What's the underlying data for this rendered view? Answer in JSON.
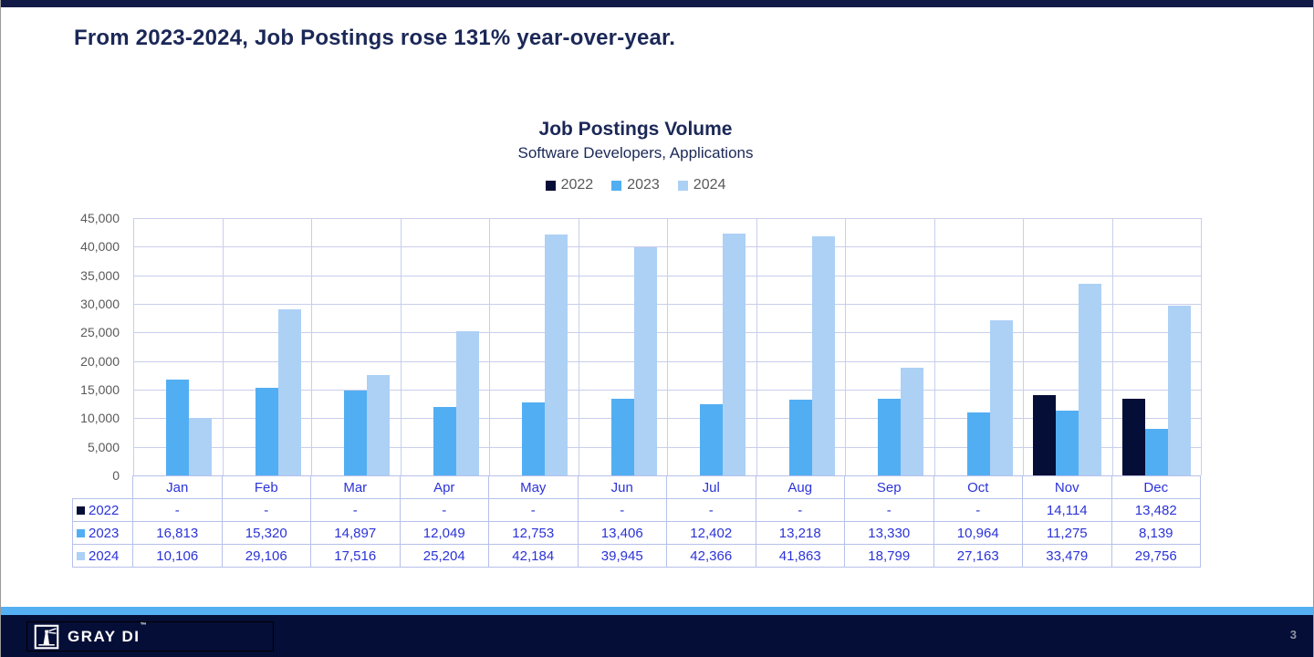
{
  "page": {
    "headline": "From 2023-2024, Job Postings rose 131% year-over-year.",
    "page_number": "3",
    "brand": "GRAY DI",
    "brand_tm": "™"
  },
  "colors": {
    "top_bar": "#121b47",
    "headline_text": "#1b2857",
    "footer_navy": "#050e36",
    "footer_stripe": "#54b0f3",
    "gridline": "#c9ceec",
    "table_border": "#b7c1ea",
    "table_text": "#2b33d8",
    "axis_text": "#5a5a5a",
    "legend_text": "#595959"
  },
  "chart_data": {
    "type": "bar",
    "title": "Job Postings Volume",
    "subtitle": "Software Developers, Applications",
    "categories": [
      "Jan",
      "Feb",
      "Mar",
      "Apr",
      "May",
      "Jun",
      "Jul",
      "Aug",
      "Sep",
      "Oct",
      "Nov",
      "Dec"
    ],
    "series": [
      {
        "name": "2022",
        "color": "#050e36",
        "values": [
          null,
          null,
          null,
          null,
          null,
          null,
          null,
          null,
          null,
          null,
          14114,
          13482
        ]
      },
      {
        "name": "2023",
        "color": "#52aef3",
        "values": [
          16813,
          15320,
          14897,
          12049,
          12753,
          13406,
          12402,
          13218,
          13330,
          10964,
          11275,
          8139
        ]
      },
      {
        "name": "2024",
        "color": "#add0f5",
        "values": [
          10106,
          29106,
          17516,
          25204,
          42184,
          39945,
          42366,
          41863,
          18799,
          27163,
          33479,
          29756
        ]
      }
    ],
    "ylim": [
      0,
      45000
    ],
    "ytick_step": 5000,
    "grid": true,
    "legend_position": "top",
    "null_display": "-"
  }
}
